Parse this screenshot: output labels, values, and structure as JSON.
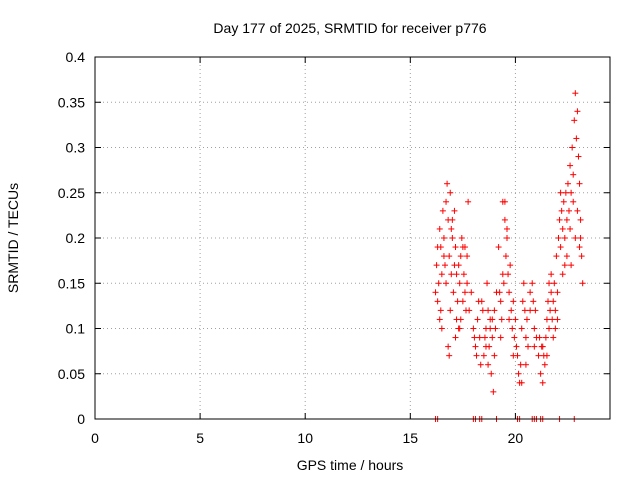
{
  "chart_data": {
    "type": "scatter",
    "title": "Day 177 of 2025, SRMTID for receiver p776",
    "xlabel": "GPS time / hours",
    "ylabel": "SRMTID / TECUs",
    "xlim": [
      0,
      24.5
    ],
    "ylim": [
      0,
      0.4
    ],
    "xticks": [
      "0",
      "5",
      "10",
      "15",
      "20"
    ],
    "yticks": [
      "0",
      "0.05",
      "0.1",
      "0.15",
      "0.2",
      "0.25",
      "0.3",
      "0.35",
      "0.4"
    ],
    "grid": true,
    "marker": "+",
    "series": [
      {
        "name": "SRMTID",
        "color": "#ff0000",
        "points": [
          [
            16.2,
            0.0
          ],
          [
            16.3,
            0.0
          ],
          [
            18.0,
            0.0
          ],
          [
            18.1,
            0.0
          ],
          [
            18.3,
            0.0
          ],
          [
            18.4,
            0.0
          ],
          [
            19.1,
            0.0
          ],
          [
            20.1,
            0.0
          ],
          [
            20.2,
            0.0
          ],
          [
            20.8,
            0.0
          ],
          [
            20.9,
            0.0
          ],
          [
            21.0,
            0.0
          ],
          [
            21.2,
            0.0
          ],
          [
            21.3,
            0.0
          ],
          [
            22.1,
            0.0
          ],
          [
            22.8,
            0.0
          ],
          [
            16.2,
            0.14
          ],
          [
            16.25,
            0.17
          ],
          [
            16.3,
            0.19
          ],
          [
            16.35,
            0.15
          ],
          [
            16.4,
            0.21
          ],
          [
            16.45,
            0.12
          ],
          [
            16.5,
            0.16
          ],
          [
            16.55,
            0.23
          ],
          [
            16.6,
            0.2
          ],
          [
            16.65,
            0.17
          ],
          [
            16.7,
            0.24
          ],
          [
            16.75,
            0.26
          ],
          [
            16.8,
            0.22
          ],
          [
            16.85,
            0.18
          ],
          [
            16.9,
            0.25
          ],
          [
            16.95,
            0.16
          ],
          [
            17.0,
            0.2
          ],
          [
            17.05,
            0.14
          ],
          [
            17.1,
            0.17
          ],
          [
            17.15,
            0.19
          ],
          [
            17.2,
            0.11
          ],
          [
            17.25,
            0.13
          ],
          [
            17.3,
            0.1
          ],
          [
            17.35,
            0.15
          ],
          [
            17.4,
            0.18
          ],
          [
            17.45,
            0.2
          ],
          [
            17.5,
            0.19
          ],
          [
            17.55,
            0.16
          ],
          [
            17.6,
            0.14
          ],
          [
            17.65,
            0.12
          ],
          [
            17.7,
            0.18
          ],
          [
            17.75,
            0.24
          ],
          [
            16.3,
            0.13
          ],
          [
            16.5,
            0.1
          ],
          [
            16.6,
            0.18
          ],
          [
            16.8,
            0.08
          ],
          [
            16.9,
            0.12
          ],
          [
            17.0,
            0.22
          ],
          [
            17.2,
            0.16
          ],
          [
            17.4,
            0.11
          ],
          [
            17.6,
            0.19
          ],
          [
            17.7,
            0.15
          ],
          [
            16.4,
            0.11
          ],
          [
            16.7,
            0.15
          ],
          [
            17.1,
            0.23
          ],
          [
            17.3,
            0.17
          ],
          [
            17.5,
            0.13
          ],
          [
            16.95,
            0.21
          ],
          [
            17.15,
            0.09
          ],
          [
            17.35,
            0.1
          ],
          [
            16.45,
            0.19
          ],
          [
            16.85,
            0.07
          ],
          [
            17.8,
            0.12
          ],
          [
            17.9,
            0.14
          ],
          [
            18.0,
            0.1
          ],
          [
            18.1,
            0.08
          ],
          [
            18.2,
            0.11
          ],
          [
            18.3,
            0.09
          ],
          [
            18.35,
            0.06
          ],
          [
            18.4,
            0.13
          ],
          [
            18.5,
            0.07
          ],
          [
            18.6,
            0.1
          ],
          [
            18.65,
            0.15
          ],
          [
            18.7,
            0.12
          ],
          [
            18.75,
            0.08
          ],
          [
            18.8,
            0.11
          ],
          [
            18.85,
            0.05
          ],
          [
            18.9,
            0.09
          ],
          [
            18.95,
            0.03
          ],
          [
            19.0,
            0.07
          ],
          [
            19.05,
            0.1
          ],
          [
            19.1,
            0.14
          ],
          [
            18.45,
            0.12
          ],
          [
            18.55,
            0.09
          ],
          [
            18.25,
            0.13
          ],
          [
            18.15,
            0.07
          ],
          [
            18.05,
            0.09
          ],
          [
            18.7,
            0.06
          ],
          [
            18.9,
            0.11
          ],
          [
            19.0,
            0.12
          ],
          [
            18.6,
            0.08
          ],
          [
            18.8,
            0.1
          ],
          [
            19.2,
            0.19
          ],
          [
            19.3,
            0.13
          ],
          [
            19.35,
            0.11
          ],
          [
            19.4,
            0.24
          ],
          [
            19.45,
            0.15
          ],
          [
            19.5,
            0.22
          ],
          [
            19.55,
            0.18
          ],
          [
            19.6,
            0.2
          ],
          [
            19.65,
            0.16
          ],
          [
            19.7,
            0.14
          ],
          [
            19.75,
            0.17
          ],
          [
            19.8,
            0.12
          ],
          [
            19.85,
            0.1
          ],
          [
            19.9,
            0.13
          ],
          [
            19.95,
            0.09
          ],
          [
            20.0,
            0.11
          ],
          [
            20.05,
            0.08
          ],
          [
            19.25,
            0.14
          ],
          [
            19.5,
            0.24
          ],
          [
            19.6,
            0.21
          ],
          [
            19.7,
            0.11
          ],
          [
            19.4,
            0.16
          ],
          [
            19.3,
            0.09
          ],
          [
            19.9,
            0.07
          ],
          [
            20.1,
            0.07
          ],
          [
            20.15,
            0.05
          ],
          [
            20.2,
            0.04
          ],
          [
            20.25,
            0.06
          ],
          [
            20.3,
            0.1
          ],
          [
            20.35,
            0.13
          ],
          [
            20.4,
            0.15
          ],
          [
            20.45,
            0.12
          ],
          [
            20.5,
            0.09
          ],
          [
            20.55,
            0.11
          ],
          [
            20.6,
            0.08
          ],
          [
            20.7,
            0.12
          ],
          [
            20.8,
            0.15
          ],
          [
            20.85,
            0.13
          ],
          [
            20.9,
            0.1
          ],
          [
            20.95,
            0.12
          ],
          [
            21.0,
            0.09
          ],
          [
            20.3,
            0.04
          ],
          [
            20.5,
            0.06
          ],
          [
            20.7,
            0.14
          ],
          [
            20.9,
            0.08
          ],
          [
            21.1,
            0.07
          ],
          [
            21.15,
            0.09
          ],
          [
            21.2,
            0.05
          ],
          [
            21.25,
            0.08
          ],
          [
            21.3,
            0.04
          ],
          [
            21.35,
            0.07
          ],
          [
            21.4,
            0.06
          ],
          [
            21.45,
            0.09
          ],
          [
            21.5,
            0.11
          ],
          [
            21.55,
            0.13
          ],
          [
            21.6,
            0.1
          ],
          [
            21.65,
            0.12
          ],
          [
            21.7,
            0.14
          ],
          [
            21.75,
            0.11
          ],
          [
            21.8,
            0.09
          ],
          [
            21.85,
            0.15
          ],
          [
            21.9,
            0.12
          ],
          [
            21.95,
            0.18
          ],
          [
            22.0,
            0.14
          ],
          [
            21.3,
            0.08
          ],
          [
            21.5,
            0.07
          ],
          [
            21.7,
            0.16
          ],
          [
            21.9,
            0.1
          ],
          [
            21.6,
            0.15
          ],
          [
            21.8,
            0.13
          ],
          [
            22.0,
            0.11
          ],
          [
            22.05,
            0.2
          ],
          [
            22.1,
            0.22
          ],
          [
            22.15,
            0.19
          ],
          [
            22.2,
            0.23
          ],
          [
            22.25,
            0.21
          ],
          [
            22.3,
            0.24
          ],
          [
            22.35,
            0.2
          ],
          [
            22.4,
            0.25
          ],
          [
            22.45,
            0.22
          ],
          [
            22.5,
            0.26
          ],
          [
            22.55,
            0.23
          ],
          [
            22.6,
            0.28
          ],
          [
            22.65,
            0.25
          ],
          [
            22.7,
            0.3
          ],
          [
            22.75,
            0.27
          ],
          [
            22.8,
            0.33
          ],
          [
            22.85,
            0.36
          ],
          [
            22.9,
            0.31
          ],
          [
            22.95,
            0.34
          ],
          [
            23.0,
            0.29
          ],
          [
            23.05,
            0.26
          ],
          [
            23.1,
            0.22
          ],
          [
            23.15,
            0.18
          ],
          [
            23.2,
            0.15
          ],
          [
            22.25,
            0.16
          ],
          [
            22.45,
            0.18
          ],
          [
            22.65,
            0.17
          ],
          [
            22.85,
            0.2
          ],
          [
            23.05,
            0.19
          ],
          [
            22.6,
            0.21
          ],
          [
            22.75,
            0.24
          ],
          [
            22.95,
            0.23
          ],
          [
            23.1,
            0.2
          ],
          [
            22.15,
            0.25
          ],
          [
            22.35,
            0.17
          ]
        ]
      }
    ]
  }
}
